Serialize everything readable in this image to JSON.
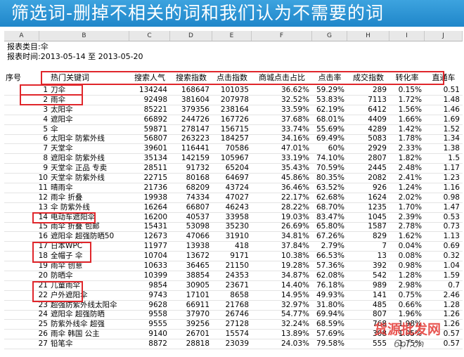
{
  "banner": {
    "title": "筛选词-删掉不相关的词和我们认为不需要的词"
  },
  "sheet": {
    "col_letters": [
      "A",
      "B",
      "C",
      "D",
      "E",
      "F",
      "G",
      "H",
      "I",
      "J"
    ],
    "info_category": "报表类目:伞",
    "info_period": "报表时间:2013-05-14 至 2013-05-20",
    "headers": [
      "序号",
      "热门关键词",
      "搜索人气",
      "搜索指数",
      "点击指数",
      "商城点击占比",
      "点击率",
      "成交指数",
      "转化率",
      "直通车"
    ],
    "rows": [
      [
        "1",
        "刀伞",
        "134244",
        "168647",
        "101035",
        "36.62%",
        "59.29%",
        "289",
        "0.15%",
        "0.51"
      ],
      [
        "2",
        "雨伞",
        "92498",
        "381604",
        "207978",
        "32.52%",
        "53.83%",
        "7113",
        "1.72%",
        "1.48"
      ],
      [
        "3",
        "太阳伞",
        "85221",
        "379356",
        "238164",
        "33.59%",
        "62.19%",
        "6412",
        "1.56%",
        "1.46"
      ],
      [
        "4",
        "遮阳伞",
        "66892",
        "244726",
        "167726",
        "37.68%",
        "68.01%",
        "4409",
        "1.66%",
        "1.69"
      ],
      [
        "5",
        "伞",
        "59871",
        "278147",
        "156715",
        "33.74%",
        "55.69%",
        "4289",
        "1.42%",
        "1.52"
      ],
      [
        "6",
        "太阳伞 防紫外线",
        "56807",
        "263223",
        "184257",
        "34.16%",
        "69.49%",
        "5083",
        "1.78%",
        "1.34"
      ],
      [
        "7",
        "天堂伞",
        "39601",
        "116441",
        "70586",
        "47.01%",
        "60%",
        "2929",
        "2.33%",
        "1.38"
      ],
      [
        "8",
        "遮阳伞 防紫外线",
        "35134",
        "142159",
        "105967",
        "33.19%",
        "74.10%",
        "2807",
        "1.82%",
        "1.5"
      ],
      [
        "9",
        "天堂伞 正品 专卖",
        "28511",
        "91732",
        "65204",
        "35.43%",
        "70.59%",
        "2445",
        "2.48%",
        "1.17"
      ],
      [
        "10",
        "天堂伞 防紫外线",
        "22715",
        "80168",
        "64697",
        "45.86%",
        "80.35%",
        "2082",
        "2.41%",
        "1.23"
      ],
      [
        "11",
        "晴雨伞",
        "21736",
        "68209",
        "43724",
        "36.46%",
        "63.52%",
        "926",
        "1.24%",
        "1.16"
      ],
      [
        "12",
        "雨伞 折叠",
        "19938",
        "74334",
        "47027",
        "22.17%",
        "62.68%",
        "1624",
        "2.02%",
        "0.98"
      ],
      [
        "13",
        "伞 防紫外线",
        "16264",
        "66807",
        "46243",
        "28.22%",
        "68.70%",
        "1235",
        "1.70%",
        "1.47"
      ],
      [
        "14",
        "电动车遮阳伞",
        "16200",
        "40537",
        "33958",
        "19.03%",
        "83.47%",
        "1045",
        "2.39%",
        "0.53"
      ],
      [
        "15",
        "雨伞 折叠 包邮",
        "15431",
        "53098",
        "35230",
        "26.69%",
        "65.80%",
        "1587",
        "2.78%",
        "0.73"
      ],
      [
        "16",
        "遮阳伞 超强防晒50",
        "12673",
        "47066",
        "31910",
        "34.81%",
        "67.26%",
        "829",
        "1.62%",
        "1.13"
      ],
      [
        "17",
        "日本WPC",
        "11977",
        "13938",
        "418",
        "37.84%",
        "2.79%",
        "7",
        "0.04%",
        "0.69"
      ],
      [
        "18",
        "全帽子  伞",
        "10704",
        "13672",
        "9171",
        "10.38%",
        "66.53%",
        "13",
        "0.08%",
        "0.32"
      ],
      [
        "19",
        "雨伞 创意",
        "10633",
        "36465",
        "21150",
        "19.28%",
        "57.36%",
        "392",
        "0.98%",
        "1.04"
      ],
      [
        "20",
        "防晒伞",
        "10399",
        "38854",
        "24353",
        "34.87%",
        "62.08%",
        "542",
        "1.28%",
        "1.59"
      ],
      [
        "21",
        "儿童雨伞",
        "9854",
        "30905",
        "23671",
        "14.40%",
        "76.18%",
        "989",
        "2.98%",
        "0.7"
      ],
      [
        "22",
        "户外遮阳伞",
        "9743",
        "17101",
        "8658",
        "14.95%",
        "49.93%",
        "141",
        "0.75%",
        "2.46"
      ],
      [
        "23",
        "超强防紫外线太阳伞",
        "9628",
        "66911",
        "21768",
        "32.97%",
        "31.80%",
        "485",
        "0.66%",
        "1.28"
      ],
      [
        "24",
        "遮阳伞 超强防晒",
        "9558",
        "37970",
        "26746",
        "54.77%",
        "69.94%",
        "807",
        "1.96%",
        "1.26"
      ],
      [
        "25",
        "防紫外线伞 超强",
        "9555",
        "39256",
        "27128",
        "32.24%",
        "68.59%",
        "768",
        "1.98%",
        "1.26"
      ],
      [
        "26",
        "雨伞 韩国 公主",
        "9140",
        "26701",
        "15574",
        "13.89%",
        "57.69%",
        "308",
        "1.05%",
        "0.57"
      ],
      [
        "27",
        "铅笔伞",
        "8872",
        "28818",
        "23039",
        "24.03%",
        "79.58%",
        "555",
        "1.75%",
        "0.57"
      ]
    ]
  },
  "watermark": {
    "line1": "货源批发网",
    "line2": "6pf.cn"
  },
  "colors": {
    "banner": "#1f86c9",
    "highlight": "#e0262b",
    "watermark": "#e53935"
  }
}
